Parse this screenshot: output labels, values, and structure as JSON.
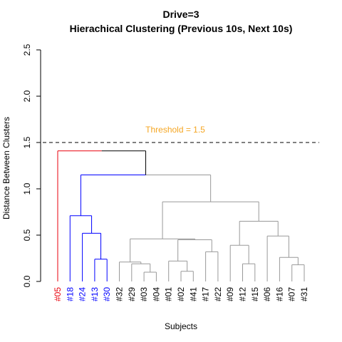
{
  "chart_data": {
    "type": "dendrogram",
    "title": "Drive=3",
    "subtitle": "Hierachical Clustering (Previous 10s, Next 10s)",
    "xlabel": "Subjects",
    "ylabel": "Distance Between Clusters",
    "ylim": [
      0,
      2.5
    ],
    "yticks": [
      "0.0",
      "0.5",
      "1.0",
      "1.5",
      "2.0",
      "2.5"
    ],
    "threshold": {
      "value": 1.5,
      "label": "Threshold = 1.5",
      "color": "#F5A623"
    },
    "leaves": [
      {
        "label": "#05",
        "color": "#E8000B"
      },
      {
        "label": "#18",
        "color": "#0000FF"
      },
      {
        "label": "#24",
        "color": "#0000FF"
      },
      {
        "label": "#13",
        "color": "#0000FF"
      },
      {
        "label": "#30",
        "color": "#0000FF"
      },
      {
        "label": "#32",
        "color": "#000000"
      },
      {
        "label": "#29",
        "color": "#000000"
      },
      {
        "label": "#03",
        "color": "#000000"
      },
      {
        "label": "#04",
        "color": "#000000"
      },
      {
        "label": "#01",
        "color": "#000000"
      },
      {
        "label": "#02",
        "color": "#000000"
      },
      {
        "label": "#41",
        "color": "#000000"
      },
      {
        "label": "#17",
        "color": "#000000"
      },
      {
        "label": "#22",
        "color": "#000000"
      },
      {
        "label": "#09",
        "color": "#000000"
      },
      {
        "label": "#12",
        "color": "#000000"
      },
      {
        "label": "#15",
        "color": "#000000"
      },
      {
        "label": "#06",
        "color": "#000000"
      },
      {
        "label": "#16",
        "color": "#000000"
      },
      {
        "label": "#07",
        "color": "#000000"
      },
      {
        "label": "#31",
        "color": "#000000"
      }
    ],
    "merges": [
      {
        "id": "m1",
        "left": "#13",
        "right": "#30",
        "height": 0.24,
        "color": "#0000FF"
      },
      {
        "id": "m2",
        "left": "#24",
        "right": "m1",
        "height": 0.52,
        "color": "#0000FF"
      },
      {
        "id": "m3",
        "left": "#18",
        "right": "m2",
        "height": 0.71,
        "color": "#0000FF"
      },
      {
        "id": "m4",
        "left": "#03",
        "right": "#04",
        "height": 0.1,
        "color": "#999999"
      },
      {
        "id": "m5",
        "left": "#29",
        "right": "m4",
        "height": 0.19,
        "color": "#999999"
      },
      {
        "id": "m6",
        "left": "#32",
        "right": "m5",
        "height": 0.21,
        "color": "#999999"
      },
      {
        "id": "m7",
        "left": "#02",
        "right": "#41",
        "height": 0.11,
        "color": "#999999"
      },
      {
        "id": "m8",
        "left": "#01",
        "right": "m7",
        "height": 0.22,
        "color": "#999999"
      },
      {
        "id": "m9",
        "left": "#17",
        "right": "#22",
        "height": 0.32,
        "color": "#999999"
      },
      {
        "id": "m10",
        "left": "m8",
        "right": "m9",
        "height": 0.45,
        "color": "#999999"
      },
      {
        "id": "m11",
        "left": "m6",
        "right": "m10",
        "height": 0.46,
        "color": "#999999"
      },
      {
        "id": "m12",
        "left": "#12",
        "right": "#15",
        "height": 0.19,
        "color": "#999999"
      },
      {
        "id": "m13",
        "left": "#09",
        "right": "m12",
        "height": 0.39,
        "color": "#999999"
      },
      {
        "id": "m14",
        "left": "#07",
        "right": "#31",
        "height": 0.18,
        "color": "#999999"
      },
      {
        "id": "m15",
        "left": "#16",
        "right": "m14",
        "height": 0.26,
        "color": "#999999"
      },
      {
        "id": "m16",
        "left": "#06",
        "right": "m15",
        "height": 0.49,
        "color": "#999999"
      },
      {
        "id": "m17",
        "left": "m13",
        "right": "m16",
        "height": 0.65,
        "color": "#999999"
      },
      {
        "id": "m18",
        "left": "m11",
        "right": "m17",
        "height": 0.86,
        "color": "#999999"
      },
      {
        "id": "m19",
        "left": "m3",
        "right": "m18",
        "height": 1.15,
        "color": "#0000FF",
        "right_color": "#999999"
      },
      {
        "id": "m20",
        "left": "#05",
        "right": "m19",
        "height": 1.41,
        "color": "#E8000B",
        "right_color": "#000000"
      }
    ]
  }
}
